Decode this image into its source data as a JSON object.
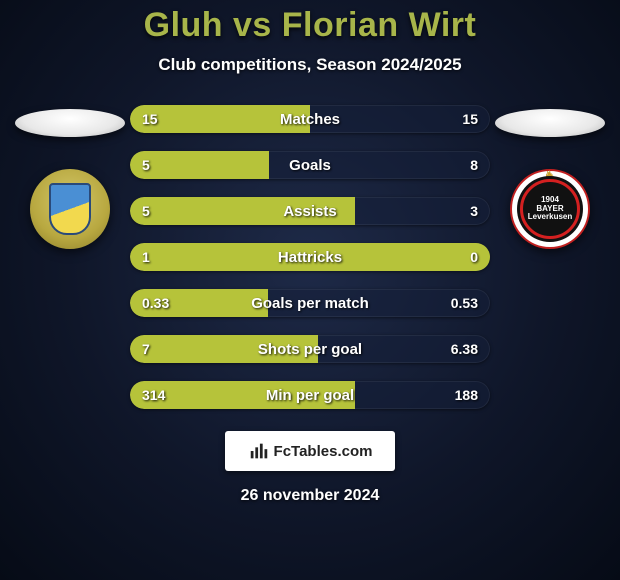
{
  "title": "Gluh vs Florian Wirt",
  "subtitle": "Club competitions, Season 2024/2025",
  "date": "26 november 2024",
  "watermark": "FcTables.com",
  "colors": {
    "title": "#a8b54a",
    "bar": "#b6c33a",
    "bg_center": "#1e2a48",
    "bg_edge": "#060b16"
  },
  "stats": {
    "type": "comparison-bars",
    "bar_fill_percent_notes": "bar width is left-player's share of (left+right)",
    "rows": [
      {
        "label": "Matches",
        "left": "15",
        "right": "15",
        "pct": 50.0
      },
      {
        "label": "Goals",
        "left": "5",
        "right": "8",
        "pct": 38.5
      },
      {
        "label": "Assists",
        "left": "5",
        "right": "3",
        "pct": 62.5
      },
      {
        "label": "Hattricks",
        "left": "1",
        "right": "0",
        "pct": 100.0
      },
      {
        "label": "Goals per match",
        "left": "0.33",
        "right": "0.53",
        "pct": 38.4
      },
      {
        "label": "Shots per goal",
        "left": "7",
        "right": "6.38",
        "pct": 52.3
      },
      {
        "label": "Min per goal",
        "left": "314",
        "right": "188",
        "pct": 62.5
      }
    ]
  },
  "crests": {
    "left_label": "BAYER",
    "right_small_top": "1904",
    "right_small_bottom": "Leverkusen"
  }
}
